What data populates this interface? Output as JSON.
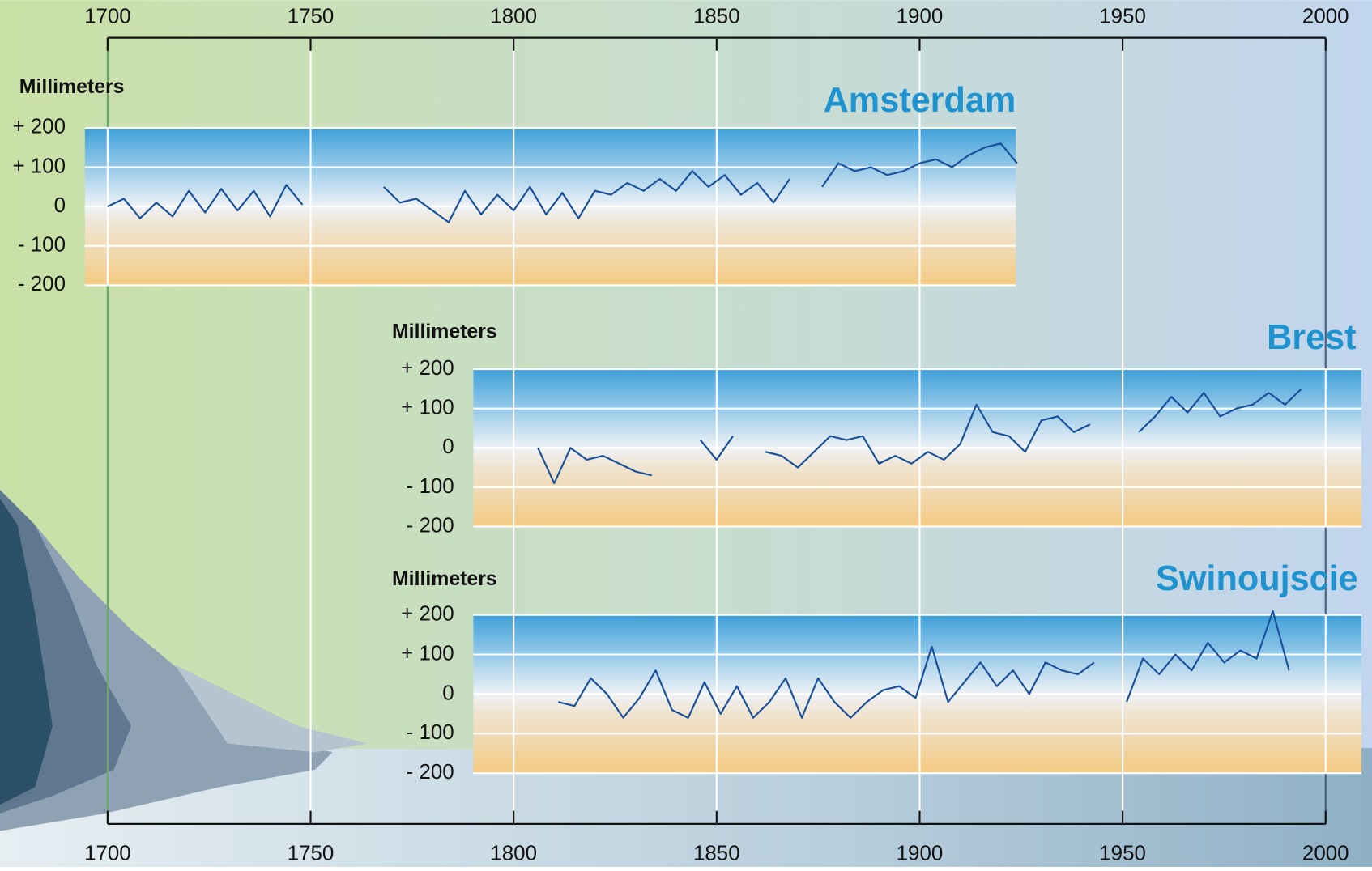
{
  "chart_data": [
    {
      "type": "line",
      "title": "Amsterdam",
      "ylabel": "Millimeters",
      "color": "#1a4f9a",
      "xlim": [
        1700,
        2000
      ],
      "xticks": [
        1700,
        1750,
        1800,
        1850,
        1900,
        1950,
        2000
      ],
      "ylim": [
        -200,
        200
      ],
      "yticks": [
        {
          "value": 200,
          "label": "+ 200"
        },
        {
          "value": 100,
          "label": "+ 100"
        },
        0,
        {
          "value": -100,
          "label": "- 100"
        },
        {
          "value": -200,
          "label": "- 200"
        }
      ],
      "grid": true,
      "x": [
        1700,
        1704,
        1708,
        1712,
        1716,
        1720,
        1724,
        1728,
        1732,
        1736,
        1740,
        1744,
        1748,
        1752,
        1756,
        1760,
        1764,
        1768,
        1772,
        1776,
        1780,
        1784,
        1788,
        1792,
        1796,
        1800,
        1804,
        1808,
        1812,
        1816,
        1820,
        1824,
        1828,
        1832,
        1836,
        1840,
        1844,
        1848,
        1852,
        1856,
        1860,
        1864,
        1868,
        1872,
        1876,
        1880,
        1884,
        1888,
        1892,
        1896,
        1900,
        1904,
        1908,
        1912,
        1916,
        1920,
        1924
      ],
      "values": [
        0,
        20,
        -30,
        10,
        -25,
        40,
        -15,
        45,
        -10,
        40,
        -25,
        55,
        5,
        null,
        null,
        null,
        null,
        50,
        10,
        20,
        -10,
        -40,
        40,
        -20,
        30,
        -10,
        50,
        -20,
        35,
        -30,
        40,
        30,
        60,
        40,
        70,
        40,
        90,
        50,
        80,
        30,
        60,
        10,
        70,
        null,
        50,
        110,
        90,
        100,
        80,
        90,
        110,
        120,
        100,
        130,
        150,
        160,
        110
      ]
    },
    {
      "type": "line",
      "title": "Brest",
      "ylabel": "Millimeters",
      "color": "#1a4f9a",
      "xlim": [
        1700,
        2000
      ],
      "xticks": [
        1700,
        1750,
        1800,
        1850,
        1900,
        1950,
        2000
      ],
      "ylim": [
        -200,
        200
      ],
      "yticks": [
        {
          "value": 200,
          "label": "+ 200"
        },
        {
          "value": 100,
          "label": "+ 100"
        },
        0,
        {
          "value": -100,
          "label": "- 100"
        },
        {
          "value": -200,
          "label": "- 200"
        }
      ],
      "grid": true,
      "x": [
        1806,
        1810,
        1814,
        1818,
        1822,
        1826,
        1830,
        1834,
        1838,
        1842,
        1846,
        1850,
        1854,
        1858,
        1862,
        1866,
        1870,
        1874,
        1878,
        1882,
        1886,
        1890,
        1894,
        1898,
        1902,
        1906,
        1910,
        1914,
        1918,
        1922,
        1926,
        1930,
        1934,
        1938,
        1942,
        1946,
        1950,
        1954,
        1958,
        1962,
        1966,
        1970,
        1974,
        1978,
        1982,
        1986,
        1990,
        1994
      ],
      "values": [
        0,
        -90,
        0,
        -30,
        -20,
        -40,
        -60,
        -70,
        null,
        null,
        20,
        -30,
        30,
        null,
        -10,
        -20,
        -50,
        -10,
        30,
        20,
        30,
        -40,
        -20,
        -40,
        -10,
        -30,
        10,
        110,
        40,
        30,
        -10,
        70,
        80,
        40,
        60,
        null,
        null,
        40,
        80,
        130,
        90,
        140,
        80,
        100,
        110,
        140,
        110,
        150
      ]
    },
    {
      "type": "line",
      "title": "Swinoujscie",
      "ylabel": "Millimeters",
      "color": "#1a4f9a",
      "xlim": [
        1700,
        2000
      ],
      "xticks": [
        1700,
        1750,
        1800,
        1850,
        1900,
        1950,
        2000
      ],
      "ylim": [
        -200,
        200
      ],
      "yticks": [
        {
          "value": 200,
          "label": "+ 200"
        },
        {
          "value": 100,
          "label": "+ 100"
        },
        0,
        {
          "value": -100,
          "label": "- 100"
        },
        {
          "value": -200,
          "label": "- 200"
        }
      ],
      "grid": true,
      "x": [
        1811,
        1815,
        1819,
        1823,
        1827,
        1831,
        1835,
        1839,
        1843,
        1847,
        1851,
        1855,
        1859,
        1863,
        1867,
        1871,
        1875,
        1879,
        1883,
        1887,
        1891,
        1895,
        1899,
        1903,
        1907,
        1911,
        1915,
        1919,
        1923,
        1927,
        1931,
        1935,
        1939,
        1943,
        1947,
        1951,
        1955,
        1959,
        1963,
        1967,
        1971,
        1975,
        1979,
        1983,
        1987,
        1991
      ],
      "values": [
        -20,
        -30,
        40,
        0,
        -60,
        -10,
        60,
        -40,
        -60,
        30,
        -50,
        20,
        -60,
        -20,
        40,
        -60,
        40,
        -20,
        -60,
        -20,
        10,
        20,
        -10,
        120,
        -20,
        30,
        80,
        20,
        60,
        0,
        80,
        60,
        50,
        80,
        null,
        -20,
        90,
        50,
        100,
        60,
        130,
        80,
        110,
        90,
        210,
        60
      ]
    }
  ]
}
